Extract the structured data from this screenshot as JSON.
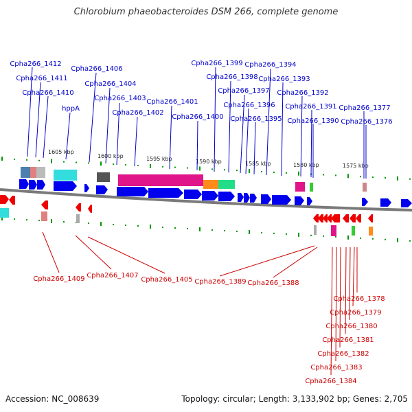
{
  "title": "Chlorobium phaeobacteroides DSM 266, complete genome",
  "footer": {
    "accession": "Accession: NC_008639",
    "stats": "Topology: circular; Length: 3,133,902 bp; Genes: 2,705"
  },
  "colors": {
    "forward_label": "#0000cc",
    "reverse_label": "#cc0000",
    "gene_blue": "#0000ee",
    "gene_red": "#ee0000",
    "backbone": "#7a7a7a",
    "tick": "#009900"
  },
  "ruler": [
    "1605 kbp",
    "1600 kbp",
    "1595 kbp",
    "1590 kbp",
    "1585 kbp",
    "1580 kbp",
    "1575 kbp"
  ],
  "forward_labels": [
    "Cpha266_1412",
    "Cpha266_1411",
    "Cpha266_1410",
    "hppA",
    "Cpha266_1406",
    "Cpha266_1404",
    "Cpha266_1403",
    "Cpha266_1402",
    "Cpha266_1401",
    "Cpha266_1400",
    "Cpha266_1399",
    "Cpha266_1398",
    "Cpha266_1397",
    "Cpha266_1396",
    "Cpha266_1395",
    "Cpha266_1394",
    "Cpha266_1393",
    "Cpha266_1392",
    "Cpha266_1391",
    "Cpha266_1390",
    "Cpha266_1377",
    "Cpha266_1376"
  ],
  "reverse_labels": [
    "Cpha266_1409",
    "Cpha266_1407",
    "Cpha266_1405",
    "Cpha266_1389",
    "Cpha266_1388",
    "Cpha266_1378",
    "Cpha266_1379",
    "Cpha266_1380",
    "Cpha266_1381",
    "Cpha266_1382",
    "Cpha266_1383",
    "Cpha266_1384"
  ]
}
